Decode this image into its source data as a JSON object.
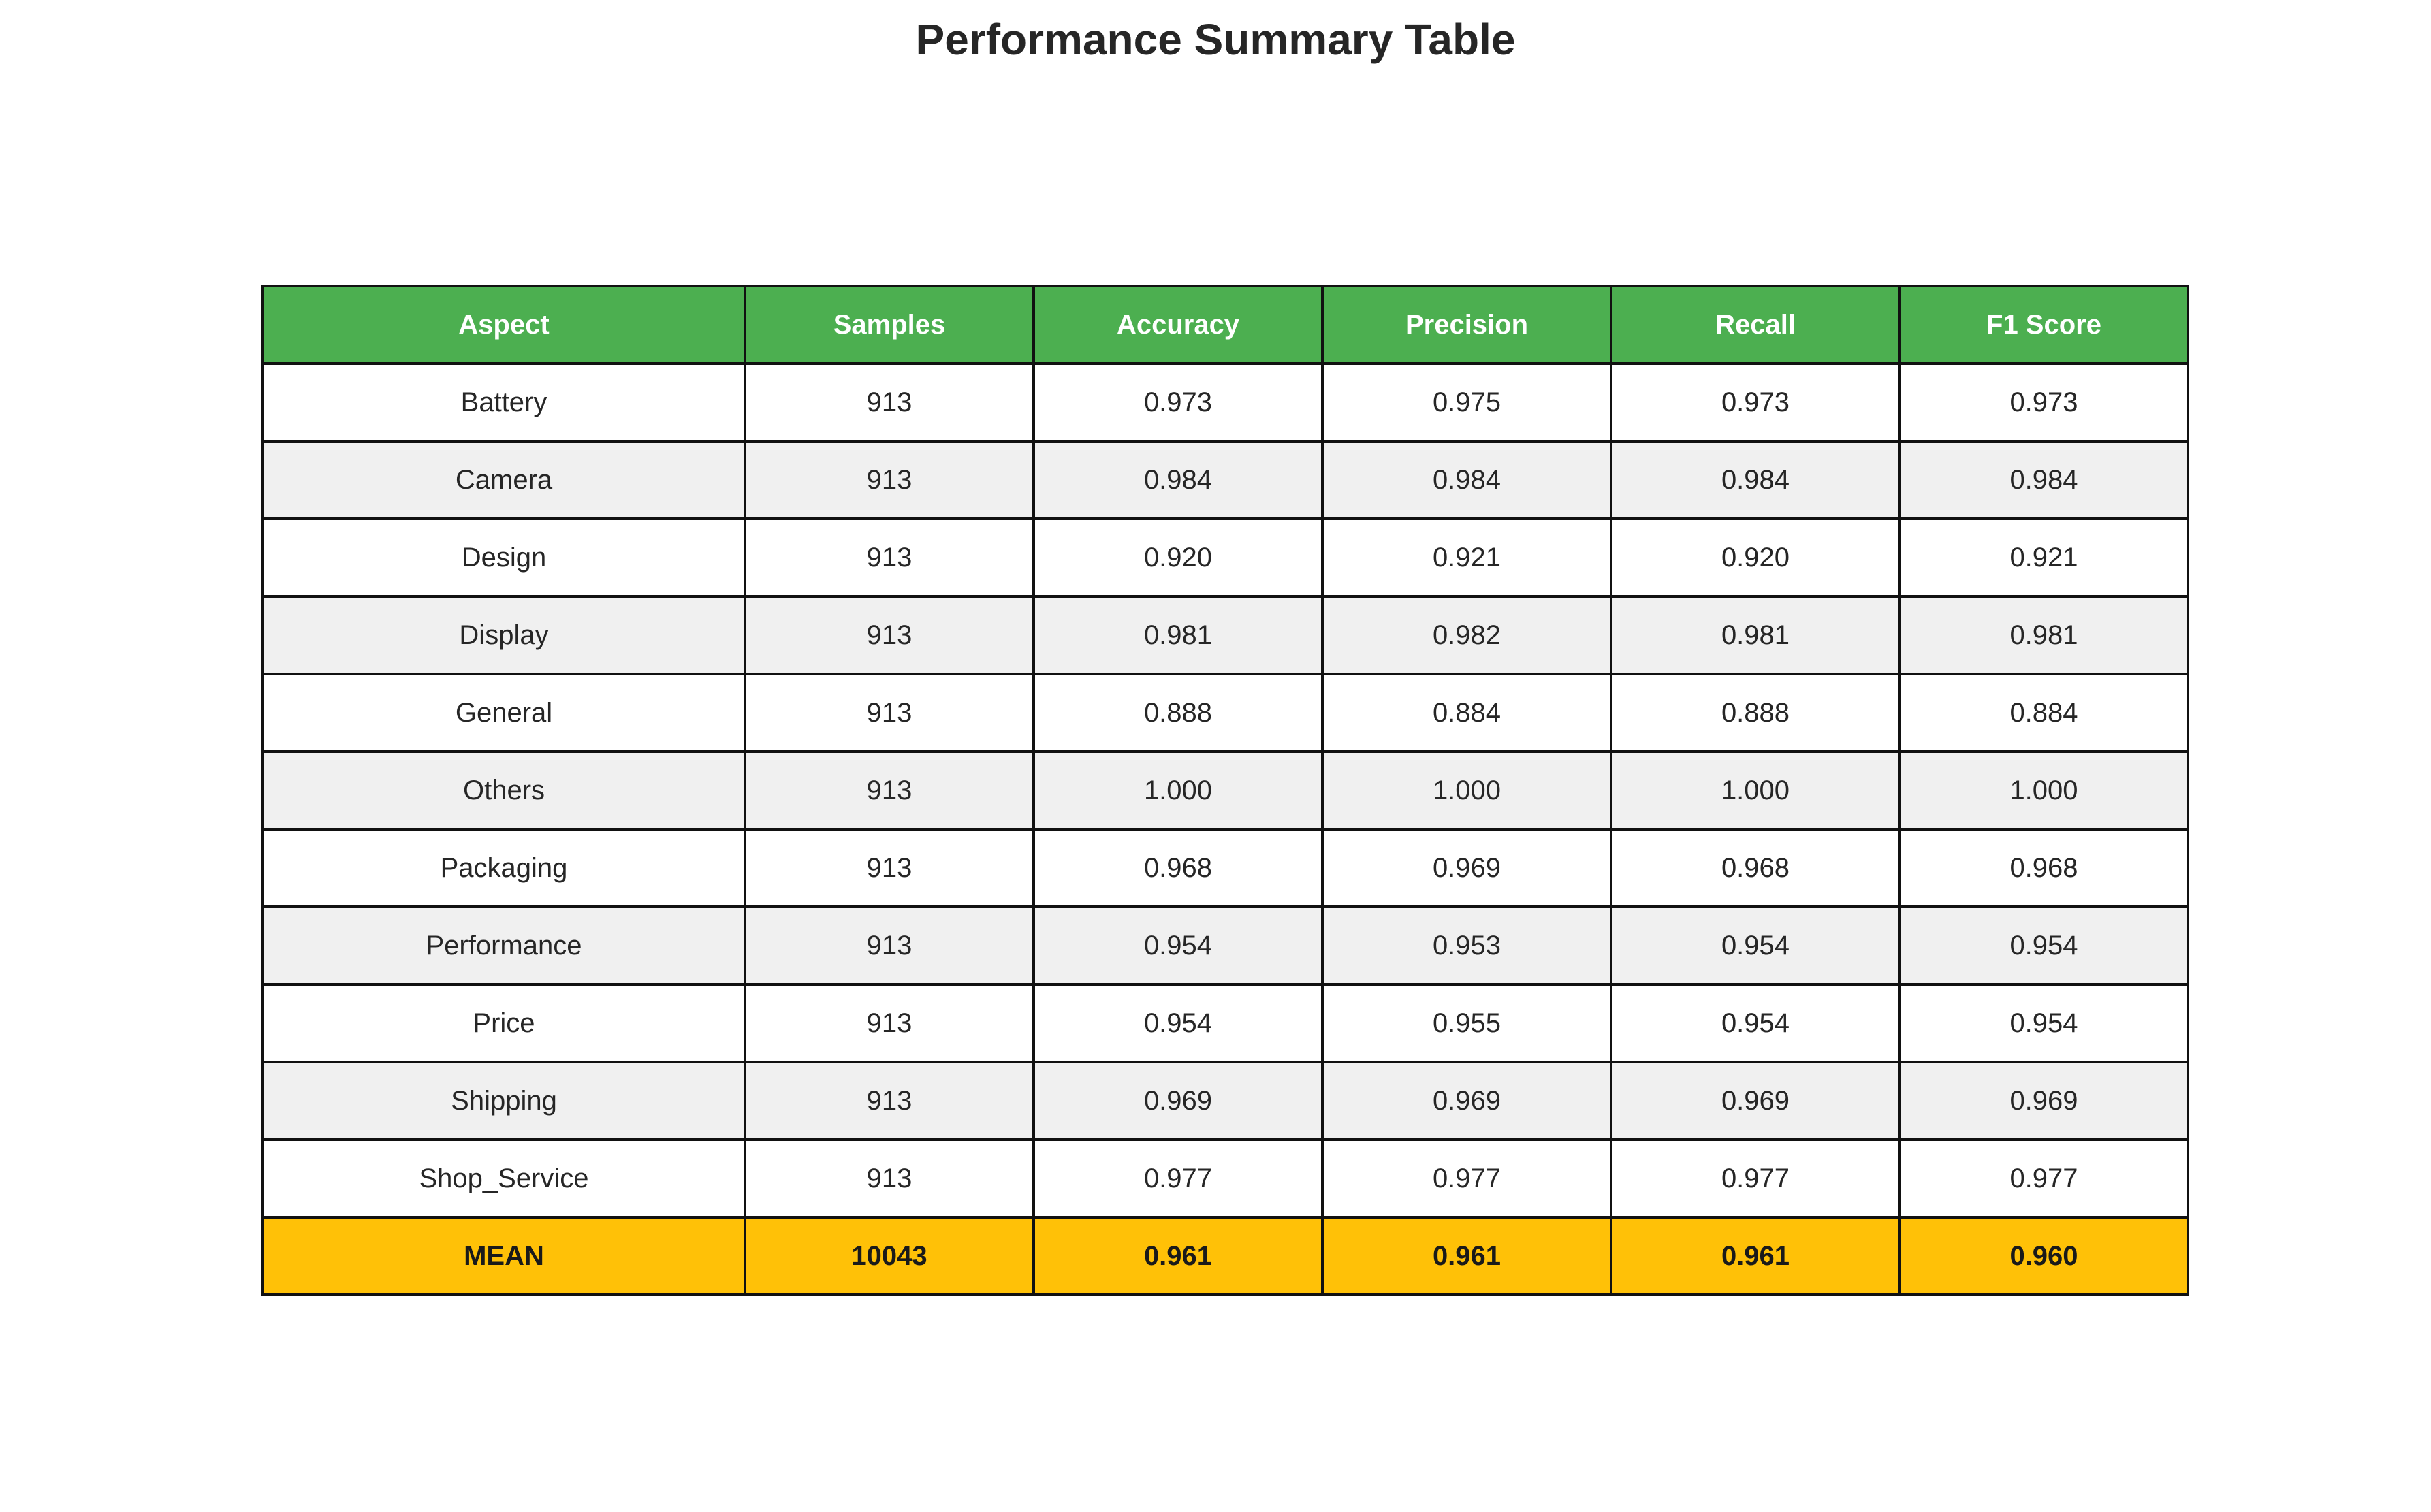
{
  "chart_data": {
    "type": "table",
    "title": "Performance Summary Table",
    "columns": [
      "Aspect",
      "Samples",
      "Accuracy",
      "Precision",
      "Recall",
      "F1 Score"
    ],
    "rows": [
      [
        "Battery",
        "913",
        "0.973",
        "0.975",
        "0.973",
        "0.973"
      ],
      [
        "Camera",
        "913",
        "0.984",
        "0.984",
        "0.984",
        "0.984"
      ],
      [
        "Design",
        "913",
        "0.920",
        "0.921",
        "0.920",
        "0.921"
      ],
      [
        "Display",
        "913",
        "0.981",
        "0.982",
        "0.981",
        "0.981"
      ],
      [
        "General",
        "913",
        "0.888",
        "0.884",
        "0.888",
        "0.884"
      ],
      [
        "Others",
        "913",
        "1.000",
        "1.000",
        "1.000",
        "1.000"
      ],
      [
        "Packaging",
        "913",
        "0.968",
        "0.969",
        "0.968",
        "0.968"
      ],
      [
        "Performance",
        "913",
        "0.954",
        "0.953",
        "0.954",
        "0.954"
      ],
      [
        "Price",
        "913",
        "0.954",
        "0.955",
        "0.954",
        "0.954"
      ],
      [
        "Shipping",
        "913",
        "0.969",
        "0.969",
        "0.969",
        "0.969"
      ],
      [
        "Shop_Service",
        "913",
        "0.977",
        "0.977",
        "0.977",
        "0.977"
      ]
    ],
    "summary_row": [
      "MEAN",
      "10043",
      "0.961",
      "0.961",
      "0.961",
      "0.960"
    ]
  },
  "colors": {
    "header_bg": "#4caf50",
    "row_even_bg": "#ffffff",
    "row_odd_bg": "#f0f0f0",
    "summary_bg": "#ffc107",
    "border": "#111111"
  }
}
